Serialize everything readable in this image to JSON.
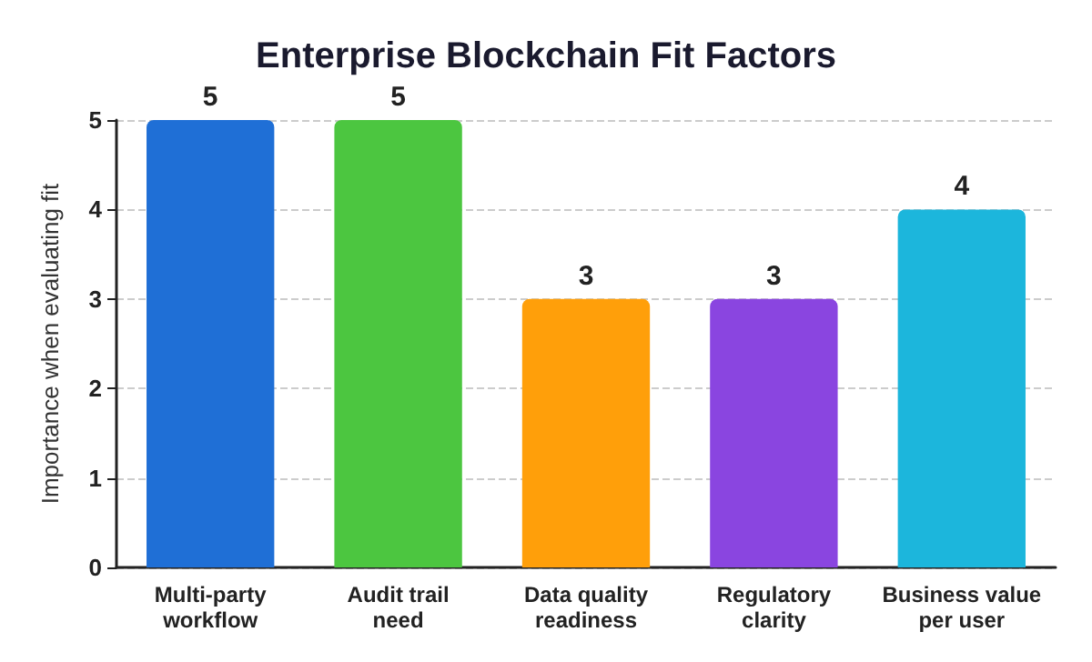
{
  "chart_data": {
    "type": "bar",
    "title": "Enterprise Blockchain Fit Factors",
    "ylabel": "Importance when evaluating fit",
    "categories": [
      "Multi-party\nworkflow",
      "Audit trail\nneed",
      "Data quality\nreadiness",
      "Regulatory\nclarity",
      "Business value\nper user"
    ],
    "values": [
      5,
      5,
      3,
      3,
      4
    ],
    "colors": [
      "#1f6fd6",
      "#4cc640",
      "#ff9f0a",
      "#8a45e0",
      "#1cb6dc"
    ],
    "ylim": [
      0,
      5
    ],
    "yticks": [
      0,
      1,
      2,
      3,
      4,
      5
    ],
    "grid": "y",
    "data_labels": true
  }
}
